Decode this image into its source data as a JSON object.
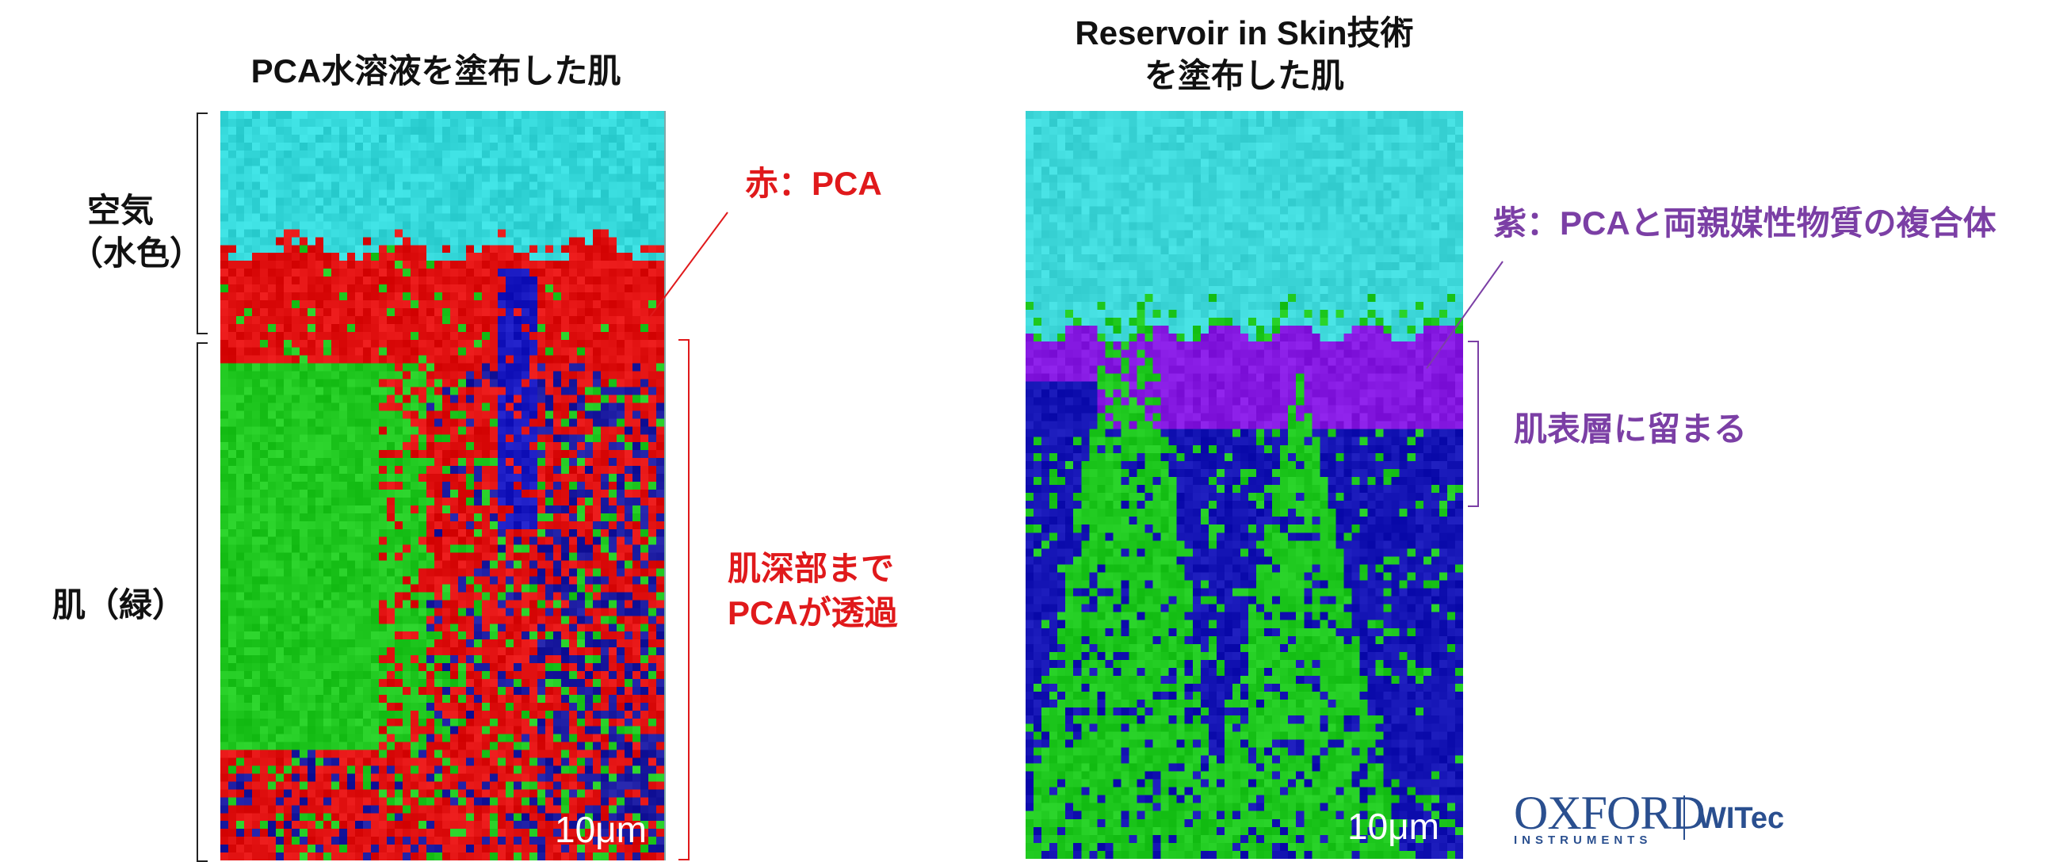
{
  "left_panel": {
    "title": "PCA水溶液を塗布した肌",
    "scale_label": "10μm"
  },
  "right_panel": {
    "title_line1": "Reservoir in Skin技術",
    "title_line2": "を塗布した肌",
    "scale_label": "10μm"
  },
  "left_labels": {
    "air_line1": "空気",
    "air_line2": "（水色）",
    "skin": "肌（緑）"
  },
  "annotations": {
    "red_pca": "赤：PCA",
    "deep_line1": "肌深部まで",
    "deep_line2": "PCAが透過",
    "purple_complex": "紫：PCAと両親媒性物質の複合体",
    "surface_stay": "肌表層に留まる"
  },
  "colors": {
    "red_text": "#e0191b",
    "purple_text": "#7b3fa5",
    "air": "#33d6d6",
    "skin": "#22cc22",
    "pca": "#e01010",
    "complex": "#8a1ee0",
    "deep": "#1010b0"
  },
  "logos": {
    "oxford": "OXFORD",
    "instruments": "INSTRUMENTS",
    "witec": "WITec"
  }
}
